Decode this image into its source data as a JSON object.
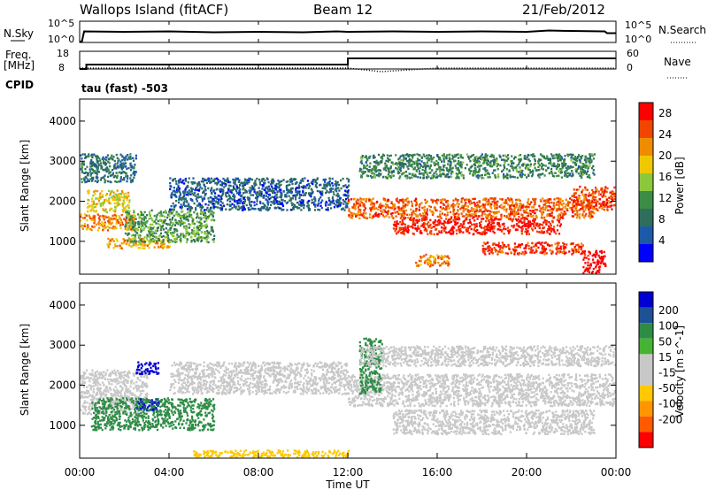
{
  "header": {
    "station": "Wallops Island (fitACF)",
    "beam": "Beam 12",
    "date": "21/Feb/2012"
  },
  "top_panels": {
    "nsky_label": "N.Sky",
    "nsky_ticks": [
      "10^5",
      "10^0"
    ],
    "nsearch_label": "N.Search",
    "nsearch_ticks": [
      "10^5",
      "10^0"
    ],
    "freq_label": "Freq.",
    "freq_unit": "[MHz]",
    "freq_ticks": [
      "18",
      "8"
    ],
    "nave_label": "Nave",
    "nave_ticks": [
      "60",
      "0"
    ],
    "cpid_label": "CPID",
    "cpid_value": "tau (fast) -503"
  },
  "x_axis": {
    "label": "Time UT",
    "ticks": [
      "00:00",
      "04:00",
      "08:00",
      "12:00",
      "16:00",
      "20:00",
      "00:00"
    ]
  },
  "colors": {
    "power_scale": [
      "#0000ff",
      "#1c5aa8",
      "#2e6e5a",
      "#3c8c46",
      "#8cc83c",
      "#f0c800",
      "#f08c00",
      "#f04600",
      "#ff0000"
    ],
    "velocity_scale": [
      "#ff0000",
      "#ff5a00",
      "#ff9600",
      "#ffc800",
      "#c8c8c8",
      "#c8c8c8",
      "#46b432",
      "#2e8c46",
      "#1e5096",
      "#0000d2"
    ]
  },
  "chart_data": [
    {
      "type": "line",
      "title": "N.Sky / N.Search",
      "x_unit": "hours UT",
      "series": [
        {
          "name": "N.Sky",
          "x": [
            0,
            0.1,
            0.2,
            2,
            4,
            6,
            8,
            10,
            11.5,
            12,
            14,
            16,
            18,
            20,
            21,
            22,
            23.5,
            23.6,
            24
          ],
          "y_log10": [
            0.2,
            0.2,
            2.6,
            2.5,
            2.6,
            2.4,
            2.5,
            2.4,
            2.6,
            2.5,
            2.6,
            2.5,
            2.6,
            2.5,
            2.8,
            2.7,
            2.6,
            2.2,
            2.2
          ]
        }
      ],
      "ylim_log10": [
        0,
        5
      ]
    },
    {
      "type": "line",
      "title": "Freq. / Nave",
      "x_unit": "hours UT",
      "series": [
        {
          "name": "Freq.",
          "x": [
            0,
            0.3,
            0.3,
            12,
            12,
            24
          ],
          "y": [
            8,
            8,
            10.5,
            10.5,
            14,
            14
          ]
        },
        {
          "name": "Nave",
          "x": [
            0,
            4,
            8,
            12,
            13.5,
            16,
            20,
            24
          ],
          "y": [
            8,
            8,
            8,
            8,
            6,
            8,
            8,
            8
          ]
        }
      ],
      "ylim_left": [
        8,
        18
      ],
      "ylim_right": [
        0,
        60
      ]
    },
    {
      "type": "heatmap",
      "title": "Power",
      "ylabel": "Slant Range [km]",
      "cbar_label": "Power [dB]",
      "cbar_ticks": [
        "28",
        "24",
        "20",
        "16",
        "12",
        "8",
        "4"
      ],
      "cbar_range": [
        0,
        30
      ],
      "x_range_hours": [
        0,
        24
      ],
      "y_range_km": [
        180,
        4550
      ],
      "yticks": [
        "1000",
        "2000",
        "3000",
        "4000"
      ],
      "features": [
        {
          "t0": 0,
          "t1": 2.5,
          "r0": 1300,
          "r1": 1700,
          "level": 22
        },
        {
          "t0": 0.3,
          "t1": 2.2,
          "r0": 1750,
          "r1": 2300,
          "level": 18
        },
        {
          "t0": 1.2,
          "t1": 4.0,
          "r0": 850,
          "r1": 1100,
          "level": 20
        },
        {
          "t0": 2.0,
          "t1": 6.0,
          "r0": 1000,
          "r1": 1800,
          "level": 12
        },
        {
          "t0": 4.0,
          "t1": 12.0,
          "r0": 1800,
          "r1": 2600,
          "level": 6
        },
        {
          "t0": 0,
          "t1": 2.5,
          "r0": 2500,
          "r1": 3200,
          "level": 8
        },
        {
          "t0": 12.0,
          "t1": 23.0,
          "r0": 1600,
          "r1": 2100,
          "level": 24
        },
        {
          "t0": 14.0,
          "t1": 21.5,
          "r0": 1200,
          "r1": 1600,
          "level": 28
        },
        {
          "t0": 18.0,
          "t1": 22.5,
          "r0": 700,
          "r1": 1000,
          "level": 26
        },
        {
          "t0": 22.0,
          "t1": 24.0,
          "r0": 1800,
          "r1": 2400,
          "level": 26
        },
        {
          "t0": 12.5,
          "t1": 23.0,
          "r0": 2600,
          "r1": 3200,
          "level": 10
        },
        {
          "t0": 15.0,
          "t1": 16.5,
          "r0": 400,
          "r1": 700,
          "level": 22
        },
        {
          "t0": 22.5,
          "t1": 23.5,
          "r0": 200,
          "r1": 800,
          "level": 30
        }
      ]
    },
    {
      "type": "heatmap",
      "title": "Velocity",
      "ylabel": "Slant Range [km]",
      "cbar_label": "Velocity [m s^-1]",
      "cbar_ticks": [
        "200",
        "100",
        "50",
        "15",
        "-15",
        "-50",
        "-100",
        "-200"
      ],
      "cbar_range": [
        -250,
        250
      ],
      "x_range_hours": [
        0,
        24
      ],
      "y_range_km": [
        180,
        4550
      ],
      "yticks": [
        "1000",
        "2000",
        "3000",
        "4000"
      ],
      "features": [
        {
          "t0": 0,
          "t1": 3.0,
          "r0": 1300,
          "r1": 2400,
          "level": 0
        },
        {
          "t0": 0.5,
          "t1": 6.0,
          "r0": 900,
          "r1": 1700,
          "level": 60
        },
        {
          "t0": 2.5,
          "t1": 3.5,
          "r0": 1400,
          "r1": 1700,
          "level": 150
        },
        {
          "t0": 2.5,
          "t1": 3.5,
          "r0": 2300,
          "r1": 2600,
          "level": 220
        },
        {
          "t0": 4.0,
          "t1": 12.0,
          "r0": 1800,
          "r1": 2600,
          "level": 0
        },
        {
          "t0": 12.0,
          "t1": 24.0,
          "r0": 1500,
          "r1": 2300,
          "level": 0
        },
        {
          "t0": 12.5,
          "t1": 13.5,
          "r0": 1800,
          "r1": 3200,
          "level": 50
        },
        {
          "t0": 14.0,
          "t1": 23.0,
          "r0": 800,
          "r1": 1400,
          "level": 0
        },
        {
          "t0": 12.5,
          "t1": 24.0,
          "r0": 2500,
          "r1": 3000,
          "level": 0
        },
        {
          "t0": 5.0,
          "t1": 12.0,
          "r0": 200,
          "r1": 400,
          "level": -40
        }
      ]
    }
  ]
}
